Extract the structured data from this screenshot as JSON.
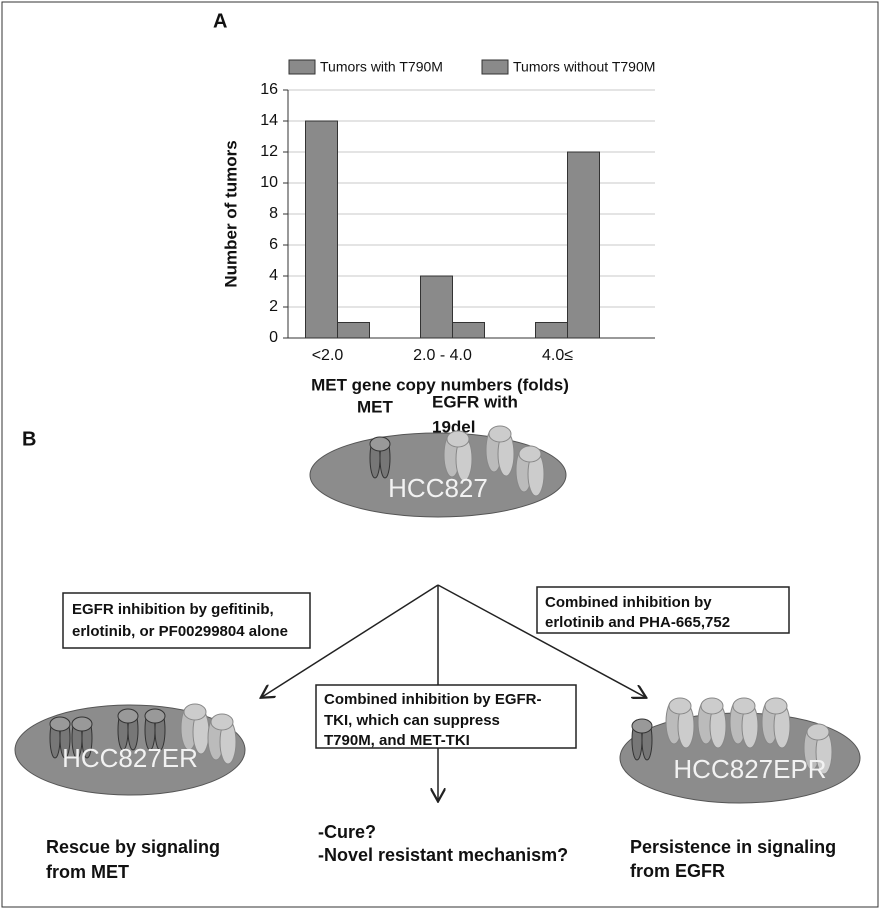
{
  "chart_data": {
    "type": "bar",
    "panel_label": "A",
    "y_label": "Number of tumors",
    "x_label": "MET gene copy numbers (folds)",
    "categories": [
      "<2.0",
      "2.0 - 4.0",
      "4.0≤"
    ],
    "series": [
      {
        "name": "Tumors with T790M",
        "color": "#8a8a8a",
        "values": [
          14,
          4,
          1
        ]
      },
      {
        "name": "Tumors without T790M",
        "color": "#8a8a8a",
        "values": [
          1,
          1,
          12
        ]
      }
    ],
    "ylim": [
      0,
      16
    ],
    "yticks": [
      0,
      2,
      4,
      6,
      8,
      10,
      12,
      14,
      16
    ],
    "grid": true,
    "legend": "top"
  },
  "diagram": {
    "panel_label": "B",
    "met_label": "MET",
    "egfr_label": [
      "EGFR with",
      "19del"
    ],
    "cells": {
      "parent": "HCC827",
      "left": "HCC827ER",
      "right": "HCC827EPR"
    },
    "boxes": {
      "left": [
        "EGFR inhibition by gefitinib,",
        "erlotinib, or PF00299804 alone"
      ],
      "right": [
        "Combined inhibition by",
        "erlotinib and PHA-665,752"
      ],
      "middle": [
        "Combined inhibition by EGFR-",
        "TKI, which can suppress",
        "T790M, and MET-TKI"
      ]
    },
    "outcomes": {
      "left": [
        "Rescue by signaling",
        "from MET"
      ],
      "middle": [
        "-Cure?",
        "-Novel resistant mechanism?"
      ],
      "right": [
        "Persistence in signaling",
        "from EGFR"
      ]
    }
  }
}
